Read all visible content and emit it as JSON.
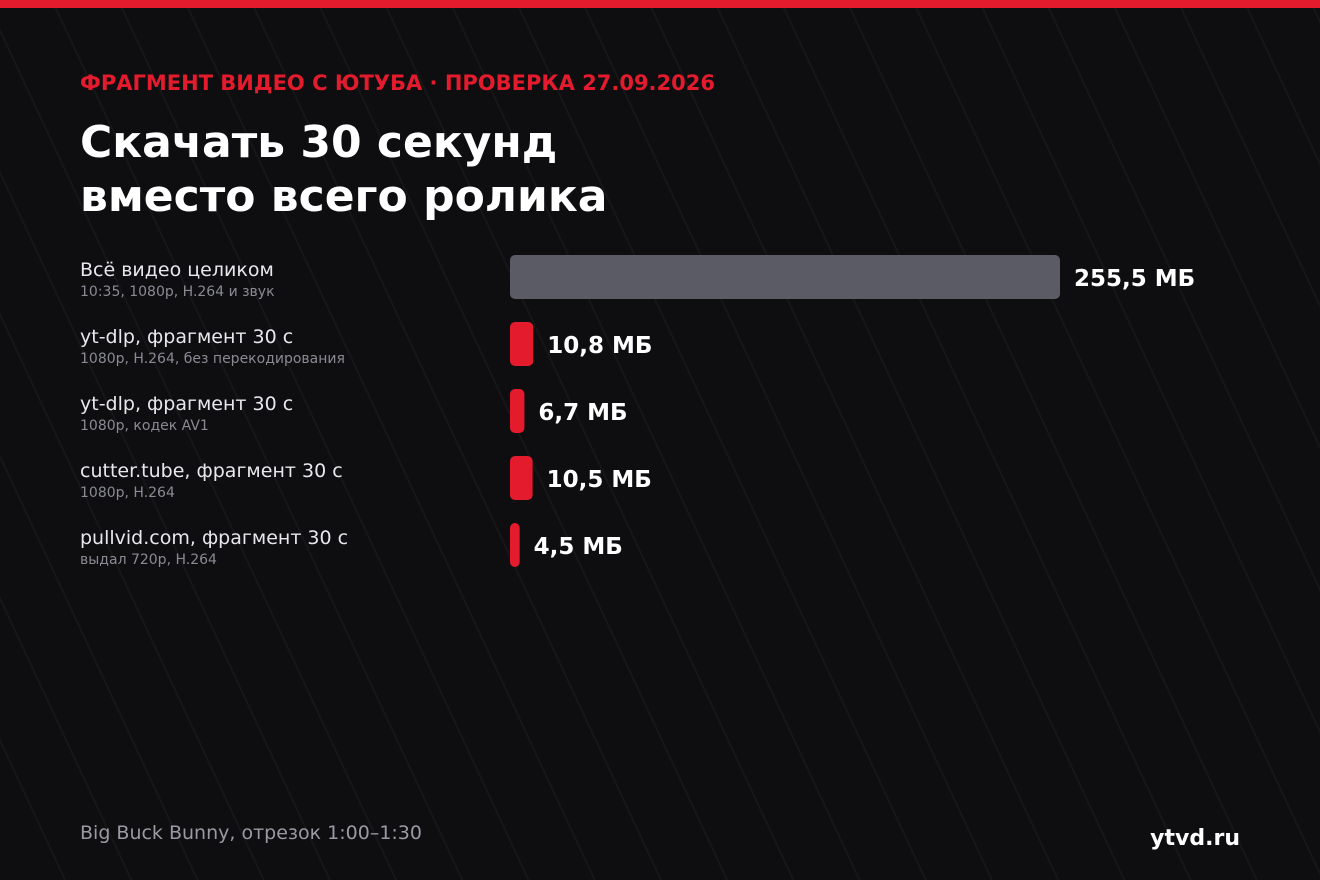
{
  "chart_data": {
    "type": "hbar",
    "eyebrow": "ФРАГМЕНТ ВИДЕО С ЮТУБА · ПРОВЕРКА 27.09.2026",
    "title": [
      "Скачать 30 секунд",
      "вместо всего ролика"
    ],
    "categories": [
      "Всё видео целиком",
      "yt-dlp, фрагмент 30 с",
      "yt-dlp, фрагмент 30 с",
      "cutter.tube, фрагмент 30 с",
      "pullvid.com, фрагмент 30 с"
    ],
    "descriptions": [
      "10:35, 1080p, H.264 и звук",
      "1080p, H.264, без перекодирования",
      "1080p, кодек AV1",
      "1080p, H.264",
      "выдал 720p, H.264"
    ],
    "values": [
      255.5,
      10.8,
      6.7,
      10.5,
      4.5
    ],
    "value_labels": [
      "255,5 МБ",
      "10,8 МБ",
      "6,7 МБ",
      "10,5 МБ",
      "4,5 МБ"
    ],
    "colors": [
      "#5b5b66",
      "#e31b2d",
      "#e31b2d",
      "#e31b2d",
      "#e31b2d"
    ],
    "footnote": "Big Buck Bunny, отрезок 1:00–1:30",
    "brand": "ytvd.ru"
  }
}
